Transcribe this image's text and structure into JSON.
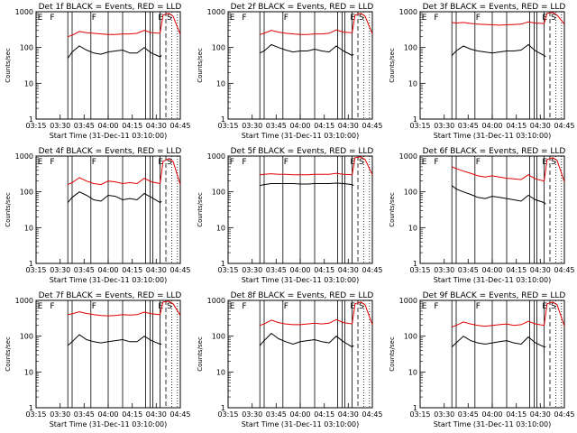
{
  "figure": {
    "start_time_label": "Start Time (31-Dec-11 03:10:00)",
    "ylabel": "Counts/sec",
    "x_ticks": [
      "03:15",
      "03:30",
      "03:45",
      "04:00",
      "04:15",
      "04:30",
      "04:45"
    ],
    "y_ticks": [
      "1",
      "10",
      "100",
      "1000"
    ],
    "colors": {
      "events": "#000000",
      "lld": "#e00000"
    }
  },
  "chart_data": [
    {
      "type": "line",
      "title": "Det 1f BLACK = Events, RED = LLD",
      "region_labels": [
        "E",
        "F",
        "F",
        "E",
        "S"
      ],
      "xlabel": "Start Time (31-Dec-11 03:10:00)",
      "ylabel": "Counts/sec",
      "y_scale": "log",
      "ylim": [
        1,
        1000
      ],
      "xlim": [
        0,
        100
      ],
      "series": [
        {
          "name": "Events",
          "x": [
            22,
            25,
            30,
            35,
            40,
            45,
            50,
            55,
            60,
            65,
            70,
            75,
            80,
            86,
            87
          ],
          "y": [
            50,
            75,
            110,
            85,
            70,
            65,
            75,
            80,
            85,
            70,
            70,
            100,
            70,
            55,
            60
          ]
        },
        {
          "name": "LLD",
          "x": [
            22,
            25,
            30,
            35,
            40,
            45,
            50,
            55,
            60,
            65,
            70,
            75,
            80,
            86,
            88,
            92,
            95,
            100
          ],
          "y": [
            200,
            220,
            280,
            260,
            250,
            240,
            230,
            230,
            240,
            240,
            250,
            300,
            260,
            250,
            800,
            900,
            750,
            230
          ]
        }
      ]
    },
    {
      "type": "line",
      "title": "Det 2f BLACK = Events, RED = LLD",
      "region_labels": [
        "E",
        "F",
        "F",
        "E",
        "S"
      ],
      "xlabel": "Start Time (31-Dec-11 03:10:00)",
      "ylabel": "Counts/sec",
      "y_scale": "log",
      "ylim": [
        1,
        1000
      ],
      "xlim": [
        0,
        100
      ],
      "series": [
        {
          "name": "Events",
          "x": [
            22,
            25,
            30,
            35,
            40,
            45,
            50,
            55,
            60,
            65,
            70,
            75,
            80,
            86,
            87
          ],
          "y": [
            70,
            80,
            120,
            100,
            85,
            75,
            80,
            80,
            90,
            80,
            75,
            110,
            80,
            60,
            65
          ]
        },
        {
          "name": "LLD",
          "x": [
            22,
            25,
            30,
            35,
            40,
            45,
            50,
            55,
            60,
            65,
            70,
            75,
            80,
            86,
            88,
            92,
            95,
            100
          ],
          "y": [
            230,
            250,
            300,
            270,
            250,
            240,
            230,
            230,
            240,
            240,
            250,
            310,
            270,
            260,
            800,
            900,
            750,
            240
          ]
        }
      ]
    },
    {
      "type": "line",
      "title": "Det 3f BLACK = Events, RED = LLD",
      "region_labels": [
        "E",
        "F",
        "F",
        "E",
        "S"
      ],
      "xlabel": "Start Time (31-Dec-11 03:10:00)",
      "ylabel": "Counts/sec",
      "y_scale": "log",
      "ylim": [
        1,
        1000
      ],
      "xlim": [
        0,
        100
      ],
      "series": [
        {
          "name": "Events",
          "x": [
            22,
            25,
            30,
            35,
            40,
            45,
            50,
            55,
            60,
            65,
            70,
            75,
            80,
            86,
            87
          ],
          "y": [
            60,
            80,
            110,
            90,
            80,
            75,
            70,
            75,
            80,
            80,
            85,
            120,
            80,
            60,
            55
          ]
        },
        {
          "name": "LLD",
          "x": [
            22,
            25,
            30,
            35,
            40,
            45,
            50,
            55,
            60,
            65,
            70,
            75,
            80,
            86,
            88,
            92,
            95,
            100
          ],
          "y": [
            500,
            480,
            500,
            470,
            450,
            440,
            430,
            420,
            430,
            440,
            450,
            520,
            480,
            470,
            900,
            950,
            800,
            450
          ]
        }
      ]
    },
    {
      "type": "line",
      "title": "Det 4f BLACK = Events, RED = LLD",
      "region_labels": [
        "E",
        "F",
        "F",
        "E",
        "S"
      ],
      "xlabel": "Start Time (31-Dec-11 03:10:00)",
      "ylabel": "Counts/sec",
      "y_scale": "log",
      "ylim": [
        1,
        1000
      ],
      "xlim": [
        0,
        100
      ],
      "series": [
        {
          "name": "Events",
          "x": [
            22,
            25,
            30,
            35,
            40,
            45,
            50,
            55,
            60,
            65,
            70,
            75,
            80,
            86,
            87
          ],
          "y": [
            50,
            70,
            100,
            80,
            60,
            55,
            80,
            75,
            60,
            65,
            60,
            90,
            70,
            50,
            55
          ]
        },
        {
          "name": "LLD",
          "x": [
            22,
            25,
            30,
            35,
            40,
            45,
            50,
            55,
            60,
            65,
            70,
            75,
            80,
            86,
            88,
            92,
            95,
            100
          ],
          "y": [
            160,
            180,
            250,
            200,
            170,
            160,
            200,
            190,
            170,
            180,
            170,
            240,
            190,
            170,
            700,
            850,
            700,
            160
          ]
        }
      ]
    },
    {
      "type": "line",
      "title": "Det 5f BLACK = Events, RED = LLD",
      "region_labels": [
        "F",
        "F",
        "F",
        "E",
        "S"
      ],
      "xlabel": "Start Time (31-Dec-11 03:10:00)",
      "ylabel": "Counts/sec",
      "y_scale": "log",
      "ylim": [
        1,
        1000
      ],
      "xlim": [
        0,
        100
      ],
      "series": [
        {
          "name": "Events",
          "x": [
            22,
            25,
            30,
            35,
            40,
            45,
            50,
            55,
            60,
            65,
            70,
            75,
            80,
            86,
            87
          ],
          "y": [
            150,
            160,
            170,
            170,
            170,
            170,
            165,
            165,
            170,
            170,
            170,
            175,
            170,
            160,
            150
          ]
        },
        {
          "name": "LLD",
          "x": [
            22,
            25,
            30,
            35,
            40,
            45,
            50,
            55,
            60,
            65,
            70,
            75,
            80,
            86,
            88,
            92,
            95,
            100
          ],
          "y": [
            300,
            310,
            320,
            310,
            310,
            300,
            300,
            300,
            310,
            310,
            310,
            330,
            310,
            300,
            900,
            950,
            800,
            300
          ]
        }
      ]
    },
    {
      "type": "line",
      "title": "Det 6f BLACK = Events, RED = LLD",
      "region_labels": [
        "E",
        "F",
        "F",
        "E",
        "S"
      ],
      "xlabel": "Start Time (31-Dec-11 03:10:00)",
      "ylabel": "Counts/sec",
      "y_scale": "log",
      "ylim": [
        1,
        1000
      ],
      "xlim": [
        0,
        100
      ],
      "series": [
        {
          "name": "Events",
          "x": [
            22,
            25,
            30,
            35,
            40,
            45,
            50,
            55,
            60,
            65,
            70,
            75,
            80,
            86,
            87
          ],
          "y": [
            150,
            120,
            100,
            85,
            70,
            65,
            75,
            70,
            65,
            60,
            55,
            80,
            60,
            50,
            45
          ]
        },
        {
          "name": "LLD",
          "x": [
            22,
            25,
            30,
            35,
            40,
            45,
            50,
            55,
            60,
            65,
            70,
            75,
            80,
            86,
            88,
            92,
            95,
            100
          ],
          "y": [
            500,
            450,
            380,
            330,
            280,
            260,
            280,
            260,
            240,
            230,
            220,
            300,
            230,
            200,
            800,
            900,
            750,
            190
          ]
        }
      ]
    },
    {
      "type": "line",
      "title": "Det 7f BLACK = Events, RED = LLD",
      "region_labels": [
        "E",
        "F",
        "F",
        "E",
        "S"
      ],
      "xlabel": "Start Time (31-Dec-11 03:10:00)",
      "ylabel": "Counts/sec",
      "y_scale": "log",
      "ylim": [
        1,
        1000
      ],
      "xlim": [
        0,
        100
      ],
      "series": [
        {
          "name": "Events",
          "x": [
            22,
            25,
            30,
            35,
            40,
            45,
            50,
            55,
            60,
            65,
            70,
            75,
            80,
            86,
            87
          ],
          "y": [
            55,
            70,
            110,
            80,
            70,
            65,
            70,
            75,
            80,
            70,
            70,
            100,
            75,
            60,
            60
          ]
        },
        {
          "name": "LLD",
          "x": [
            22,
            25,
            30,
            35,
            40,
            45,
            50,
            55,
            60,
            65,
            70,
            75,
            80,
            86,
            88,
            92,
            95,
            100
          ],
          "y": [
            400,
            420,
            480,
            430,
            400,
            380,
            370,
            380,
            400,
            390,
            400,
            470,
            420,
            400,
            900,
            950,
            800,
            380
          ]
        }
      ]
    },
    {
      "type": "line",
      "title": "Det 8f BLACK = Events, RED = LLD",
      "region_labels": [
        "E",
        "F",
        "F",
        "E",
        "S"
      ],
      "xlabel": "Start Time (31-Dec-11 03:10:00)",
      "ylabel": "Counts/sec",
      "y_scale": "log",
      "ylim": [
        1,
        1000
      ],
      "xlim": [
        0,
        100
      ],
      "series": [
        {
          "name": "Events",
          "x": [
            22,
            25,
            30,
            35,
            40,
            45,
            50,
            55,
            60,
            65,
            70,
            75,
            80,
            86,
            87
          ],
          "y": [
            55,
            75,
            120,
            85,
            70,
            60,
            70,
            75,
            80,
            70,
            65,
            100,
            70,
            50,
            55
          ]
        },
        {
          "name": "LLD",
          "x": [
            22,
            25,
            30,
            35,
            40,
            45,
            50,
            55,
            60,
            65,
            70,
            75,
            80,
            86,
            88,
            92,
            95,
            100
          ],
          "y": [
            200,
            220,
            280,
            240,
            220,
            210,
            210,
            220,
            230,
            220,
            230,
            290,
            240,
            220,
            800,
            900,
            750,
            210
          ]
        }
      ]
    },
    {
      "type": "line",
      "title": "Det 9f BLACK = Events, RED = LLD",
      "region_labels": [
        "E",
        "F",
        "F",
        "E",
        "S"
      ],
      "xlabel": "Start Time (31-Dec-11 03:10:00)",
      "ylabel": "Counts/sec",
      "y_scale": "log",
      "ylim": [
        1,
        1000
      ],
      "xlim": [
        0,
        100
      ],
      "series": [
        {
          "name": "Events",
          "x": [
            22,
            25,
            30,
            35,
            40,
            45,
            50,
            55,
            60,
            65,
            70,
            75,
            80,
            86,
            87
          ],
          "y": [
            50,
            65,
            100,
            75,
            65,
            60,
            65,
            70,
            75,
            65,
            60,
            95,
            65,
            50,
            50
          ]
        },
        {
          "name": "LLD",
          "x": [
            22,
            25,
            30,
            35,
            40,
            45,
            50,
            55,
            60,
            65,
            70,
            75,
            80,
            86,
            88,
            92,
            95,
            100
          ],
          "y": [
            180,
            200,
            250,
            220,
            200,
            190,
            200,
            210,
            220,
            200,
            210,
            260,
            220,
            200,
            800,
            900,
            750,
            190
          ]
        }
      ]
    }
  ]
}
